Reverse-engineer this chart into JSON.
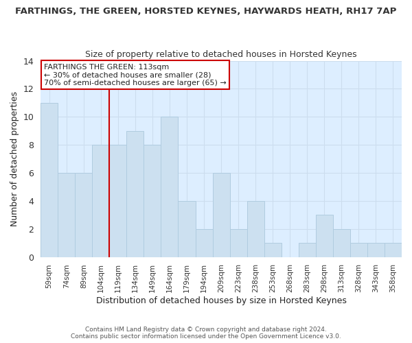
{
  "title": "FARTHINGS, THE GREEN, HORSTED KEYNES, HAYWARDS HEATH, RH17 7AP",
  "subtitle": "Size of property relative to detached houses in Horsted Keynes",
  "xlabel": "Distribution of detached houses by size in Horsted Keynes",
  "ylabel": "Number of detached properties",
  "footer_line1": "Contains HM Land Registry data © Crown copyright and database right 2024.",
  "footer_line2": "Contains public sector information licensed under the Open Government Licence v3.0.",
  "bar_labels": [
    "59sqm",
    "74sqm",
    "89sqm",
    "104sqm",
    "119sqm",
    "134sqm",
    "149sqm",
    "164sqm",
    "179sqm",
    "194sqm",
    "209sqm",
    "223sqm",
    "238sqm",
    "253sqm",
    "268sqm",
    "283sqm",
    "298sqm",
    "313sqm",
    "328sqm",
    "343sqm",
    "358sqm"
  ],
  "bar_values": [
    11,
    6,
    6,
    8,
    8,
    9,
    8,
    10,
    4,
    2,
    6,
    2,
    4,
    1,
    0,
    1,
    3,
    2,
    1,
    1,
    1
  ],
  "bar_color": "#cce0f0",
  "bar_edge_color": "#b0cce0",
  "vline_x_index": 4,
  "vline_color": "#cc0000",
  "annotation_title": "FARTHINGS THE GREEN: 113sqm",
  "annotation_line2": "← 30% of detached houses are smaller (28)",
  "annotation_line3": "70% of semi-detached houses are larger (65) →",
  "annotation_box_color": "#ffffff",
  "annotation_box_edge": "#cc0000",
  "ylim": [
    0,
    14
  ],
  "yticks": [
    0,
    2,
    4,
    6,
    8,
    10,
    12,
    14
  ],
  "background_color": "#ffffff",
  "grid_color": "#ccddee",
  "plot_bg_color": "#ddeeff"
}
